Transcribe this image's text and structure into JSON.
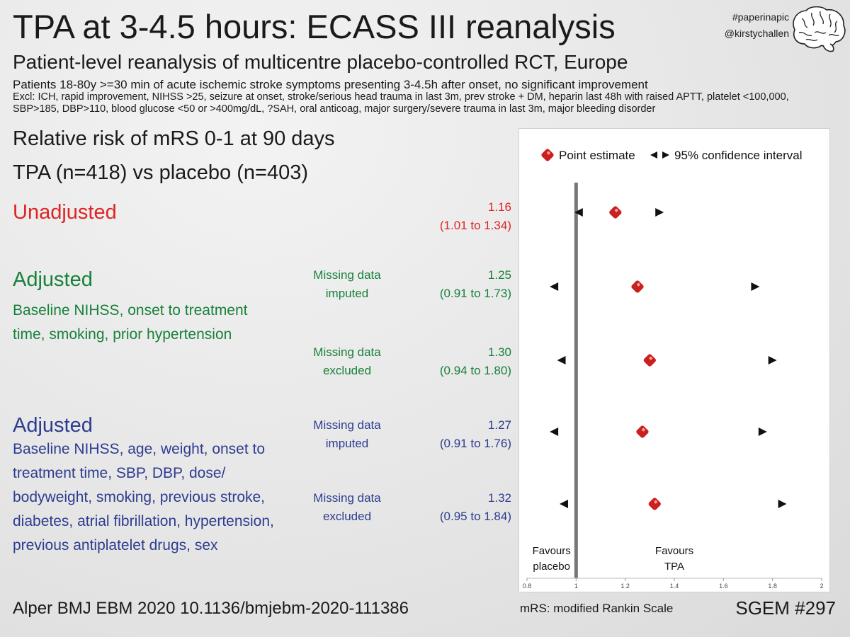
{
  "header": {
    "title": "TPA at 3-4.5 hours: ECASS III reanalysis",
    "subtitle": "Patient-level reanalysis of multicentre placebo-controlled RCT, Europe",
    "patients": "Patients 18-80y >=30 min of acute ischemic stroke symptoms presenting 3-4.5h after onset, no significant improvement",
    "exclusions": "Excl: ICH, rapid improvement, NIHSS >25, seizure at onset, stroke/serious head trauma in last 3m, prev stroke + DM, heparin last 48h with raised APTT, platelet <100,000, SBP>185, DBP>110, blood glucose <50 or >400mg/dL, ?SAH, oral anticoag, major surgery/severe trauma in last 3m, major bleeding disorder",
    "hashtag": "#paperinapic",
    "handle": "@kirstychallen"
  },
  "outcome": {
    "line1": "Relative risk of mRS 0-1 at 90 days",
    "line2": "TPA (n=418) vs placebo (n=403)"
  },
  "groups": {
    "unadjusted": {
      "title": "Unadjusted",
      "estimate": "1.16",
      "ci": "(1.01 to 1.34)",
      "color": "#e02323"
    },
    "adj1": {
      "title": "Adjusted",
      "desc": "Baseline NIHSS, onset to treatment time, smoking, prior hypertension",
      "color": "#17813a",
      "rows": [
        {
          "method_l1": "Missing data",
          "method_l2": "imputed",
          "estimate": "1.25",
          "ci": "(0.91 to 1.73)"
        },
        {
          "method_l1": "Missing data",
          "method_l2": "excluded",
          "estimate": "1.30",
          "ci": "(0.94 to 1.80)"
        }
      ]
    },
    "adj2": {
      "title": "Adjusted",
      "desc": "Baseline NIHSS, age, weight, onset to treatment time, SBP, DBP, dose/ bodyweight, smoking, previous stroke, diabetes, atrial fibrillation, hypertension, previous antiplatelet drugs, sex",
      "color": "#2e3c8f",
      "rows": [
        {
          "method_l1": "Missing data",
          "method_l2": "imputed",
          "estimate": "1.27",
          "ci": "(0.91 to 1.76)"
        },
        {
          "method_l1": "Missing data",
          "method_l2": "excluded",
          "estimate": "1.32",
          "ci": "(0.95 to 1.84)"
        }
      ]
    }
  },
  "chart_data": {
    "type": "scatter",
    "subtype": "forest",
    "legend": {
      "point_label": "Point estimate",
      "ci_label": "95% confidence interval",
      "position": "top"
    },
    "xlim": [
      0.8,
      2
    ],
    "xticks": [
      "0.8",
      "1",
      "1.2",
      "1.4",
      "1.6",
      "1.8",
      "2"
    ],
    "reference_line": 1,
    "favours_left": [
      "Favours",
      "placebo"
    ],
    "favours_right": [
      "Favours",
      "TPA"
    ],
    "rows": [
      {
        "estimate": 1.16,
        "lower": 1.01,
        "upper": 1.34
      },
      {
        "estimate": 1.25,
        "lower": 0.91,
        "upper": 1.73
      },
      {
        "estimate": 1.3,
        "lower": 0.94,
        "upper": 1.8
      },
      {
        "estimate": 1.27,
        "lower": 0.91,
        "upper": 1.76
      },
      {
        "estimate": 1.32,
        "lower": 0.95,
        "upper": 1.84
      }
    ],
    "marker_color": "#cc1f1f"
  },
  "footer": {
    "citation": "Alper BMJ EBM 2020 10.1136/bmjebm-2020-111386",
    "mrs_note": "mRS: modified Rankin Scale",
    "sgem": "SGEM #297"
  }
}
